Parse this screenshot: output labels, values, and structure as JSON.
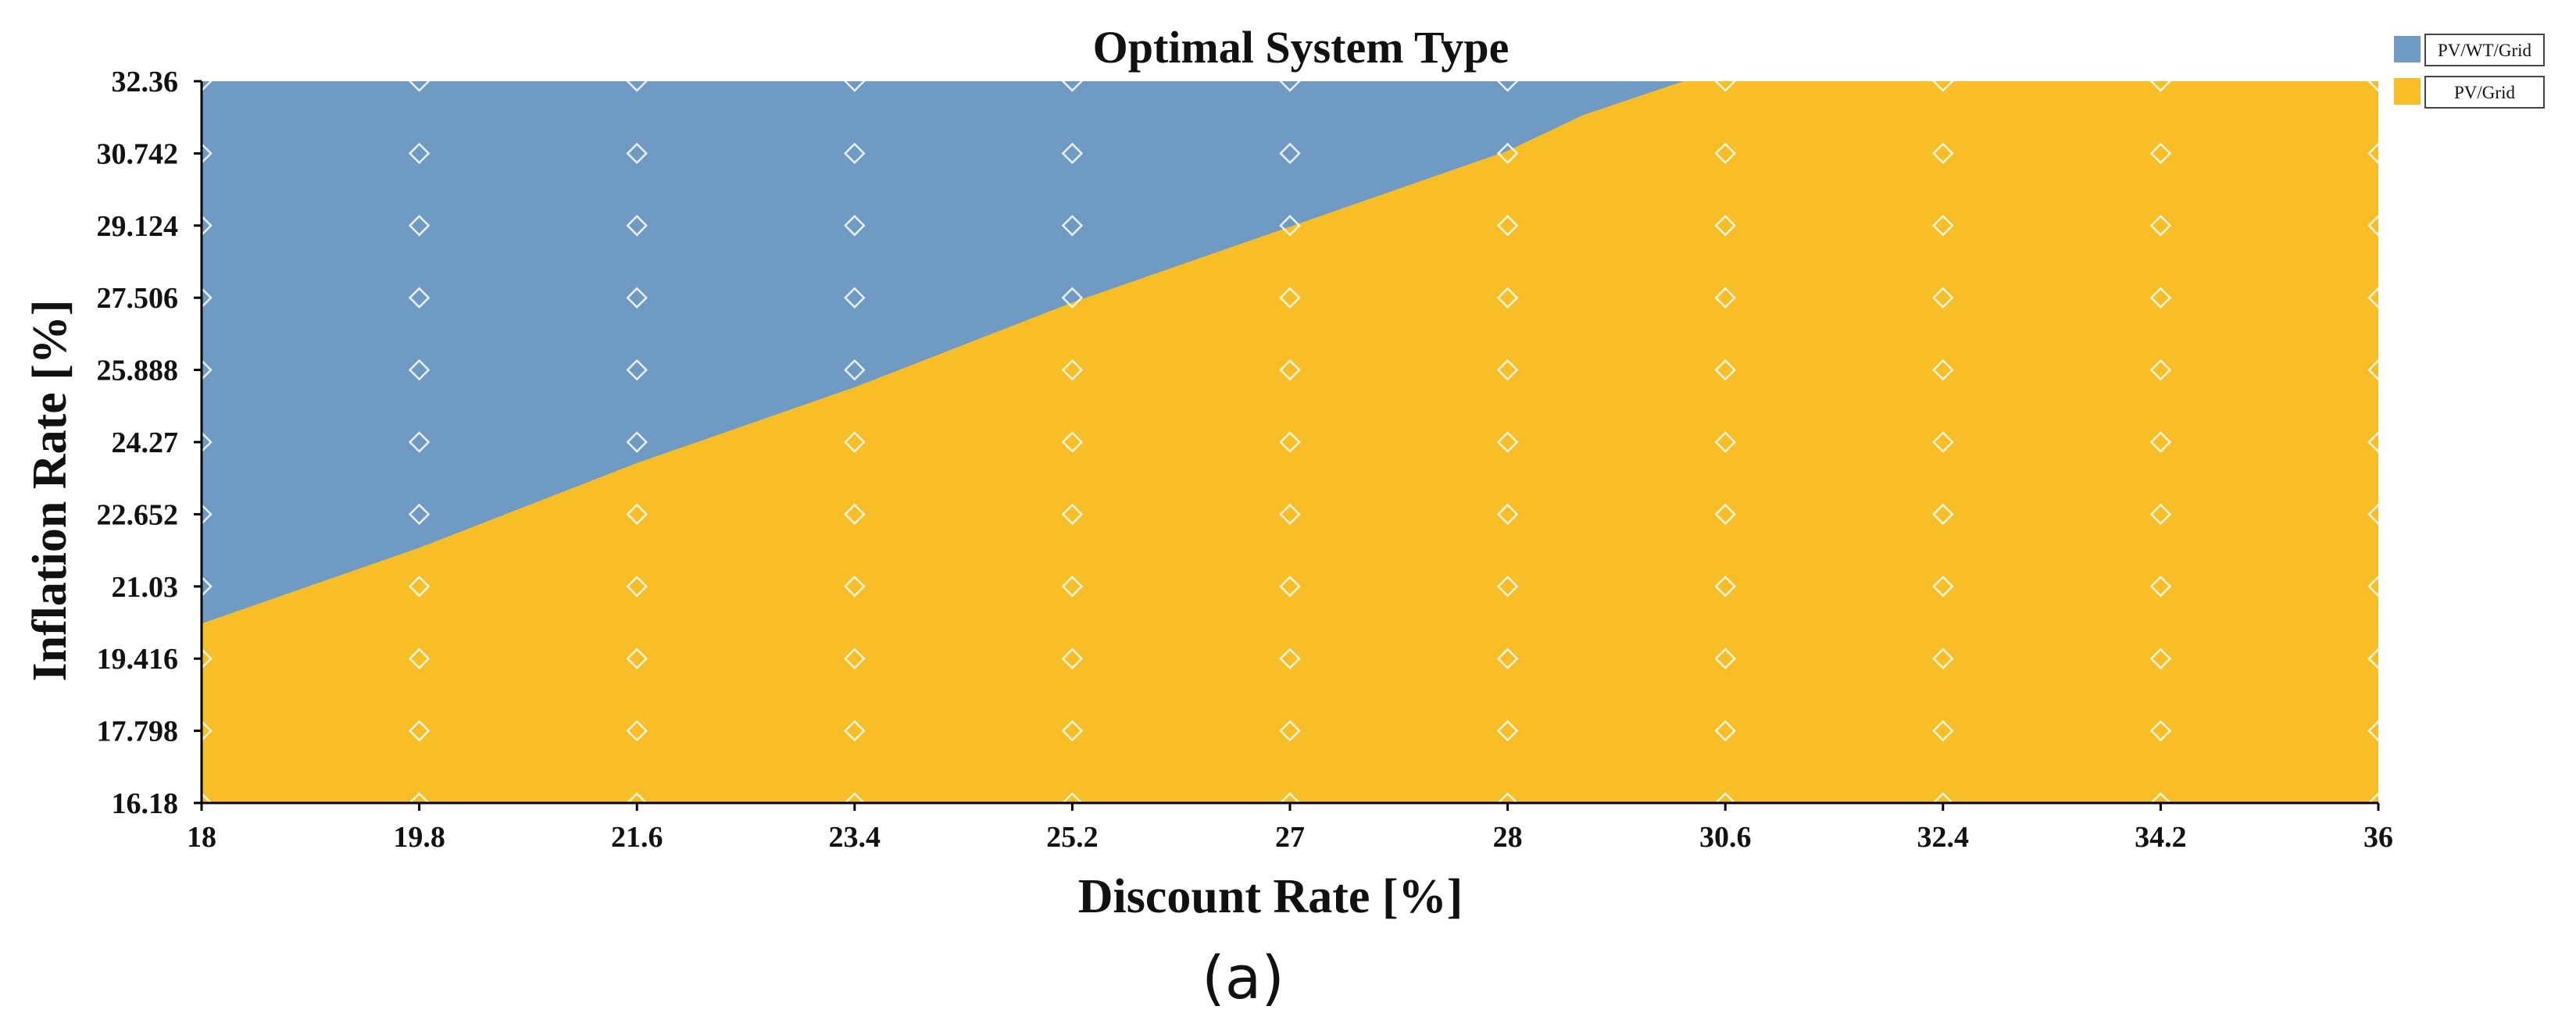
{
  "chart_data": {
    "type": "heatmap",
    "title": "Optimal System Type",
    "xlabel": "Discount Rate [%]",
    "ylabel": "Inflation Rate [%]",
    "panel_label": "(a)",
    "x_ticks": [
      "18",
      "19.8",
      "21.6",
      "23.4",
      "25.2",
      "27",
      "28",
      "30.6",
      "32.4",
      "34.2",
      "36"
    ],
    "y_ticks": [
      "16.18",
      "17.798",
      "19.416",
      "21.03",
      "22.652",
      "24.27",
      "25.888",
      "27.506",
      "29.124",
      "30.742",
      "32.36"
    ],
    "xlim": [
      18,
      36
    ],
    "ylim": [
      16.18,
      32.36
    ],
    "legend_position": "top-right",
    "series": [
      {
        "name": "PV/WT/Grid",
        "color": "#6f9ac4"
      },
      {
        "name": "PV/Grid",
        "color": "#f8be28"
      }
    ],
    "boundary": {
      "description": "Upper-left region is PV/WT/Grid, lower-right region is PV/Grid",
      "x": [
        18,
        19.8,
        21.6,
        23.4,
        25.2,
        27,
        28,
        28.9,
        30.1
      ],
      "y": [
        20.2,
        21.9,
        23.8,
        25.5,
        27.4,
        29.1,
        30.8,
        31.6,
        32.36
      ]
    },
    "grid_markers": "diamond"
  }
}
